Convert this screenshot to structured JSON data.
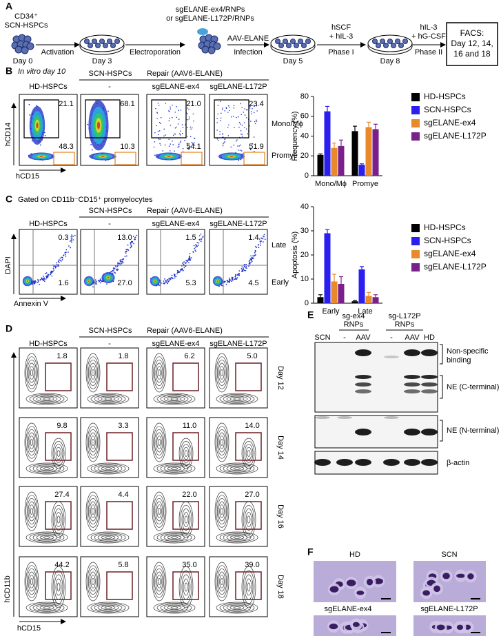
{
  "panel_a": {
    "label": "A",
    "start": [
      "CD34⁺",
      "SCN-HSPCs"
    ],
    "days": [
      "Day 0",
      "Day 3",
      "Day 5",
      "Day 8"
    ],
    "steps": [
      "Activation",
      "Electroporation",
      "Infection",
      "Phase I",
      "Phase II"
    ],
    "rnp": [
      "sgELANE-ex4/RNPs",
      "or sgELANE-L172P/RNPs"
    ],
    "aav": "AAV-ELANE",
    "phase_1_media": [
      "hSCF",
      "+ hIL-3"
    ],
    "phase_2_media": [
      "hIL-3",
      "+ hG-CSF"
    ],
    "facs": [
      "FACS:",
      "Day 12, 14,",
      "16 and 18"
    ]
  },
  "panel_b": {
    "label": "B",
    "subtitle": "In vitro day 10",
    "group_scn": "SCN-HSPCs",
    "group_repair": "Repair (AAV6-ELANE)",
    "columns": [
      "HD-HSPCs",
      "-",
      "sgELANE-ex4",
      "sgELANE-L172P"
    ],
    "y_axis": "hCD14",
    "x_axis": "hCD15",
    "gates": [
      "Mono/Mϕ",
      "Promye"
    ],
    "upper": [
      "21.1",
      "68.1",
      "21.0",
      "23.4"
    ],
    "lower": [
      "48.3",
      "10.3",
      "54.1",
      "51.9"
    ]
  },
  "panel_c": {
    "label": "C",
    "subtitle": "Gated on CD11b⁻CD15⁺ promyelocytes",
    "group_scn": "SCN-HSPCs",
    "group_repair": "Repair (AAV6-ELANE)",
    "columns": [
      "HD-HSPCs",
      "-",
      "sgELANE-ex4",
      "sgELANE-L172P"
    ],
    "y_axis": "DAPI",
    "x_axis": "Annexin V",
    "gates": [
      "Late",
      "Early"
    ],
    "upper": [
      "0.3",
      "13.0",
      "1.5",
      "1.4"
    ],
    "lower": [
      "1.6",
      "27.0",
      "5.3",
      "4.5"
    ]
  },
  "panel_d": {
    "label": "D",
    "group_scn": "SCN-HSPCs",
    "group_repair": "Repair (AAV6-ELANE)",
    "columns": [
      "HD-HSPCs",
      "-",
      "sgELANE-ex4",
      "sgELANE-L172P"
    ],
    "y_axis": "hCD11b",
    "x_axis": "hCD15",
    "days": [
      "Day 12",
      "Day 14",
      "Day 16",
      "Day 18"
    ],
    "rows": [
      [
        "1.8",
        "1.8",
        "6.2",
        "5.0"
      ],
      [
        "9.8",
        "3.3",
        "11.0",
        "14.0"
      ],
      [
        "27.4",
        "4.4",
        "22.0",
        "27.0"
      ],
      [
        "44.2",
        "5.8",
        "35.0",
        "39.0"
      ]
    ]
  },
  "panel_e": {
    "label": "E",
    "groups": [
      [
        "sg-ex4",
        "RNPs"
      ],
      [
        "sg-L172P",
        "RNPs"
      ]
    ],
    "lanes": [
      "SCN",
      "-",
      "AAV",
      "-",
      "AAV",
      "HD"
    ],
    "bands": [
      [
        "Non-specific",
        "binding"
      ],
      [
        "NE (C-terminal)"
      ],
      [
        "NE (N-terminal)"
      ],
      [
        "β-actin"
      ]
    ]
  },
  "panel_f": {
    "label": "F",
    "images": [
      "HD",
      "SCN",
      "sgELANE-ex4",
      "sgELANE-L172P"
    ]
  },
  "chart_data": [
    {
      "type": "bar",
      "ylabel": "Frequency (%)",
      "categories": [
        "Mono/Mϕ",
        "Promye"
      ],
      "ylim": [
        0,
        80
      ],
      "yticks": [
        0,
        20,
        40,
        60,
        80
      ],
      "series": [
        {
          "name": "HD-HSPCs",
          "color": "#000000",
          "values": [
            21,
            45
          ],
          "errors": [
            1,
            5
          ]
        },
        {
          "name": "SCN-HSPCs",
          "color": "#2b1ff0",
          "values": [
            65,
            11
          ],
          "errors": [
            5,
            1
          ]
        },
        {
          "name": "sgELANE-ex4",
          "color": "#e8892b",
          "values": [
            28,
            49
          ],
          "errors": [
            5,
            5
          ]
        },
        {
          "name": "sgELANE-L172P",
          "color": "#7b1f8a",
          "values": [
            30,
            47
          ],
          "errors": [
            6,
            5
          ]
        }
      ]
    },
    {
      "type": "bar",
      "ylabel": "Apoptosis (%)",
      "categories": [
        "Early",
        "Late"
      ],
      "ylim": [
        0,
        40
      ],
      "yticks": [
        0,
        10,
        20,
        30,
        40
      ],
      "series": [
        {
          "name": "HD-HSPCs",
          "color": "#000000",
          "values": [
            2.5,
            0.8
          ],
          "errors": [
            1,
            0.3
          ]
        },
        {
          "name": "SCN-HSPCs",
          "color": "#2b1ff0",
          "values": [
            29,
            14
          ],
          "errors": [
            1.5,
            1.2
          ]
        },
        {
          "name": "sgELANE-ex4",
          "color": "#e8892b",
          "values": [
            9,
            3
          ],
          "errors": [
            3,
            1.5
          ]
        },
        {
          "name": "sgELANE-L172P",
          "color": "#7b1f8a",
          "values": [
            8,
            2.5
          ],
          "errors": [
            3,
            1
          ]
        }
      ]
    }
  ]
}
